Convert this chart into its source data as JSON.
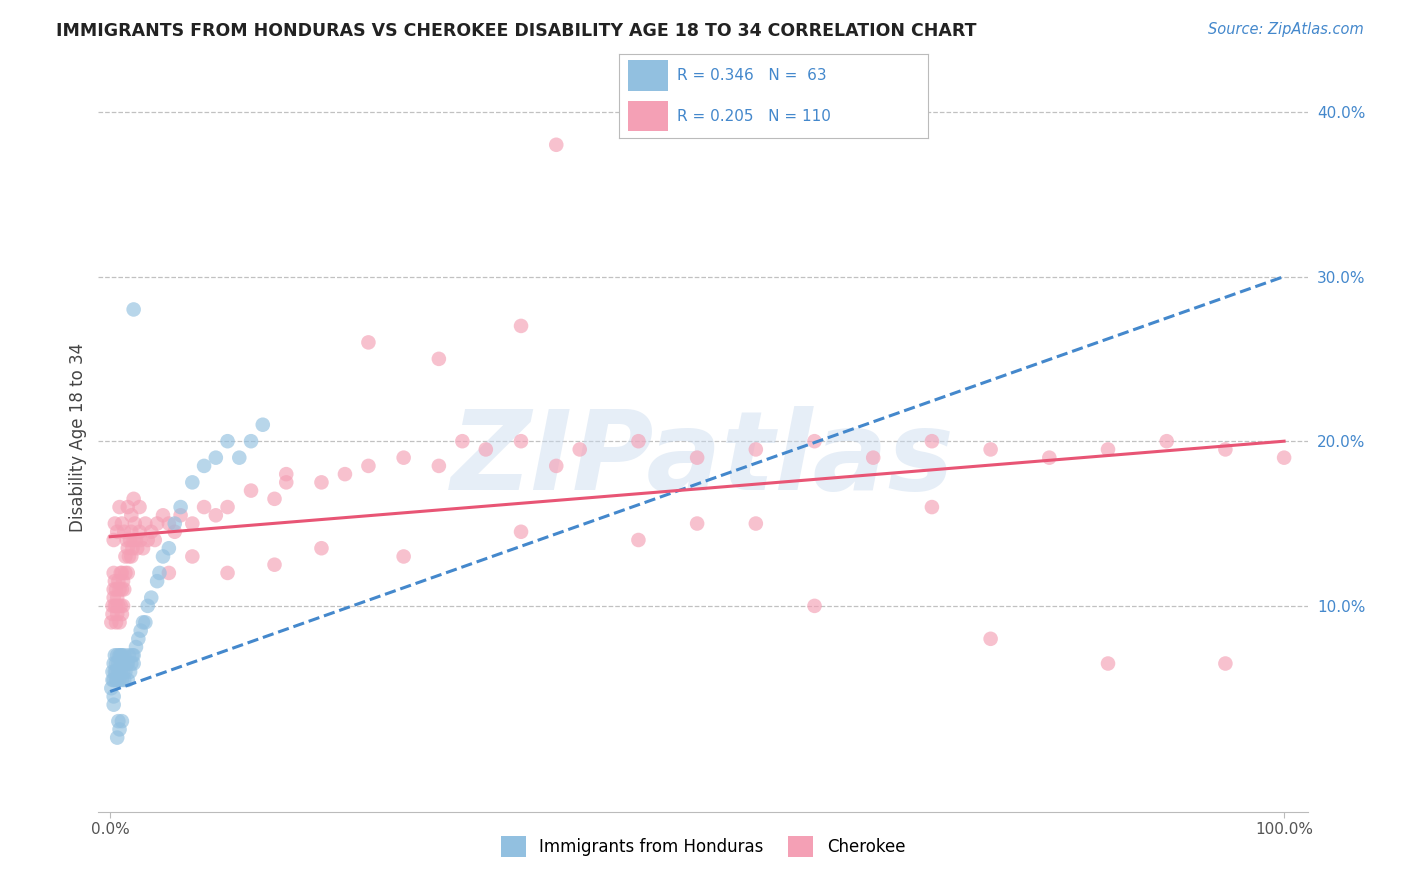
{
  "title": "IMMIGRANTS FROM HONDURAS VS CHEROKEE DISABILITY AGE 18 TO 34 CORRELATION CHART",
  "source": "Source: ZipAtlas.com",
  "ylabel": "Disability Age 18 to 34",
  "xlim": [
    -0.01,
    1.02
  ],
  "ylim": [
    -0.025,
    0.43
  ],
  "color_blue": "#92C0E0",
  "color_pink": "#F4A0B5",
  "line_blue": "#4488CC",
  "line_pink": "#E85575",
  "background": "#FFFFFF",
  "grid_color": "#BBBBBB",
  "title_color": "#222222",
  "watermark_color": "#C8DAEE",
  "right_axis_color": "#4488CC",
  "source_color": "#4488CC",
  "blue_x": [
    0.001,
    0.002,
    0.002,
    0.003,
    0.003,
    0.004,
    0.004,
    0.005,
    0.005,
    0.005,
    0.006,
    0.006,
    0.007,
    0.007,
    0.008,
    0.008,
    0.009,
    0.009,
    0.009,
    0.01,
    0.01,
    0.01,
    0.011,
    0.011,
    0.012,
    0.012,
    0.013,
    0.014,
    0.015,
    0.015,
    0.016,
    0.017,
    0.018,
    0.019,
    0.02,
    0.02,
    0.022,
    0.024,
    0.026,
    0.028,
    0.03,
    0.032,
    0.035,
    0.04,
    0.042,
    0.045,
    0.05,
    0.055,
    0.06,
    0.07,
    0.08,
    0.09,
    0.1,
    0.11,
    0.12,
    0.13,
    0.01,
    0.008,
    0.006,
    0.007,
    0.003,
    0.003,
    0.02
  ],
  "blue_y": [
    0.05,
    0.055,
    0.06,
    0.055,
    0.065,
    0.06,
    0.07,
    0.055,
    0.06,
    0.065,
    0.055,
    0.07,
    0.06,
    0.065,
    0.055,
    0.07,
    0.06,
    0.065,
    0.07,
    0.055,
    0.065,
    0.07,
    0.06,
    0.065,
    0.055,
    0.07,
    0.06,
    0.065,
    0.055,
    0.065,
    0.07,
    0.06,
    0.065,
    0.07,
    0.07,
    0.065,
    0.075,
    0.08,
    0.085,
    0.09,
    0.09,
    0.1,
    0.105,
    0.115,
    0.12,
    0.13,
    0.135,
    0.15,
    0.16,
    0.175,
    0.185,
    0.19,
    0.2,
    0.19,
    0.2,
    0.21,
    0.03,
    0.025,
    0.02,
    0.03,
    0.04,
    0.045,
    0.28
  ],
  "pink_x": [
    0.001,
    0.002,
    0.002,
    0.003,
    0.003,
    0.003,
    0.004,
    0.004,
    0.005,
    0.005,
    0.005,
    0.006,
    0.006,
    0.007,
    0.007,
    0.008,
    0.008,
    0.009,
    0.009,
    0.01,
    0.01,
    0.01,
    0.011,
    0.011,
    0.012,
    0.013,
    0.013,
    0.014,
    0.015,
    0.015,
    0.016,
    0.017,
    0.018,
    0.018,
    0.019,
    0.02,
    0.021,
    0.022,
    0.023,
    0.025,
    0.026,
    0.028,
    0.03,
    0.032,
    0.035,
    0.038,
    0.04,
    0.045,
    0.05,
    0.055,
    0.06,
    0.07,
    0.08,
    0.09,
    0.1,
    0.12,
    0.14,
    0.15,
    0.18,
    0.2,
    0.22,
    0.25,
    0.28,
    0.3,
    0.32,
    0.35,
    0.38,
    0.4,
    0.45,
    0.5,
    0.55,
    0.6,
    0.65,
    0.7,
    0.75,
    0.8,
    0.85,
    0.9,
    0.95,
    1.0,
    0.003,
    0.004,
    0.006,
    0.008,
    0.01,
    0.012,
    0.015,
    0.018,
    0.02,
    0.025,
    0.05,
    0.07,
    0.1,
    0.14,
    0.18,
    0.25,
    0.35,
    0.45,
    0.55,
    0.7,
    0.28,
    0.35,
    0.22,
    0.15,
    0.38,
    0.5,
    0.6,
    0.75,
    0.85,
    0.95
  ],
  "pink_y": [
    0.09,
    0.1,
    0.095,
    0.105,
    0.11,
    0.12,
    0.1,
    0.115,
    0.09,
    0.1,
    0.11,
    0.095,
    0.105,
    0.1,
    0.115,
    0.09,
    0.11,
    0.1,
    0.12,
    0.095,
    0.11,
    0.12,
    0.1,
    0.115,
    0.11,
    0.12,
    0.13,
    0.14,
    0.12,
    0.135,
    0.13,
    0.14,
    0.13,
    0.145,
    0.135,
    0.14,
    0.15,
    0.14,
    0.135,
    0.145,
    0.14,
    0.135,
    0.15,
    0.14,
    0.145,
    0.14,
    0.15,
    0.155,
    0.15,
    0.145,
    0.155,
    0.15,
    0.16,
    0.155,
    0.16,
    0.17,
    0.165,
    0.175,
    0.175,
    0.18,
    0.185,
    0.19,
    0.185,
    0.2,
    0.195,
    0.2,
    0.185,
    0.195,
    0.2,
    0.19,
    0.195,
    0.2,
    0.19,
    0.2,
    0.195,
    0.19,
    0.195,
    0.2,
    0.195,
    0.19,
    0.14,
    0.15,
    0.145,
    0.16,
    0.15,
    0.145,
    0.16,
    0.155,
    0.165,
    0.16,
    0.12,
    0.13,
    0.12,
    0.125,
    0.135,
    0.13,
    0.145,
    0.14,
    0.15,
    0.16,
    0.25,
    0.27,
    0.26,
    0.18,
    0.38,
    0.15,
    0.1,
    0.08,
    0.065,
    0.065
  ],
  "watermark_text": "ZIPatlas"
}
